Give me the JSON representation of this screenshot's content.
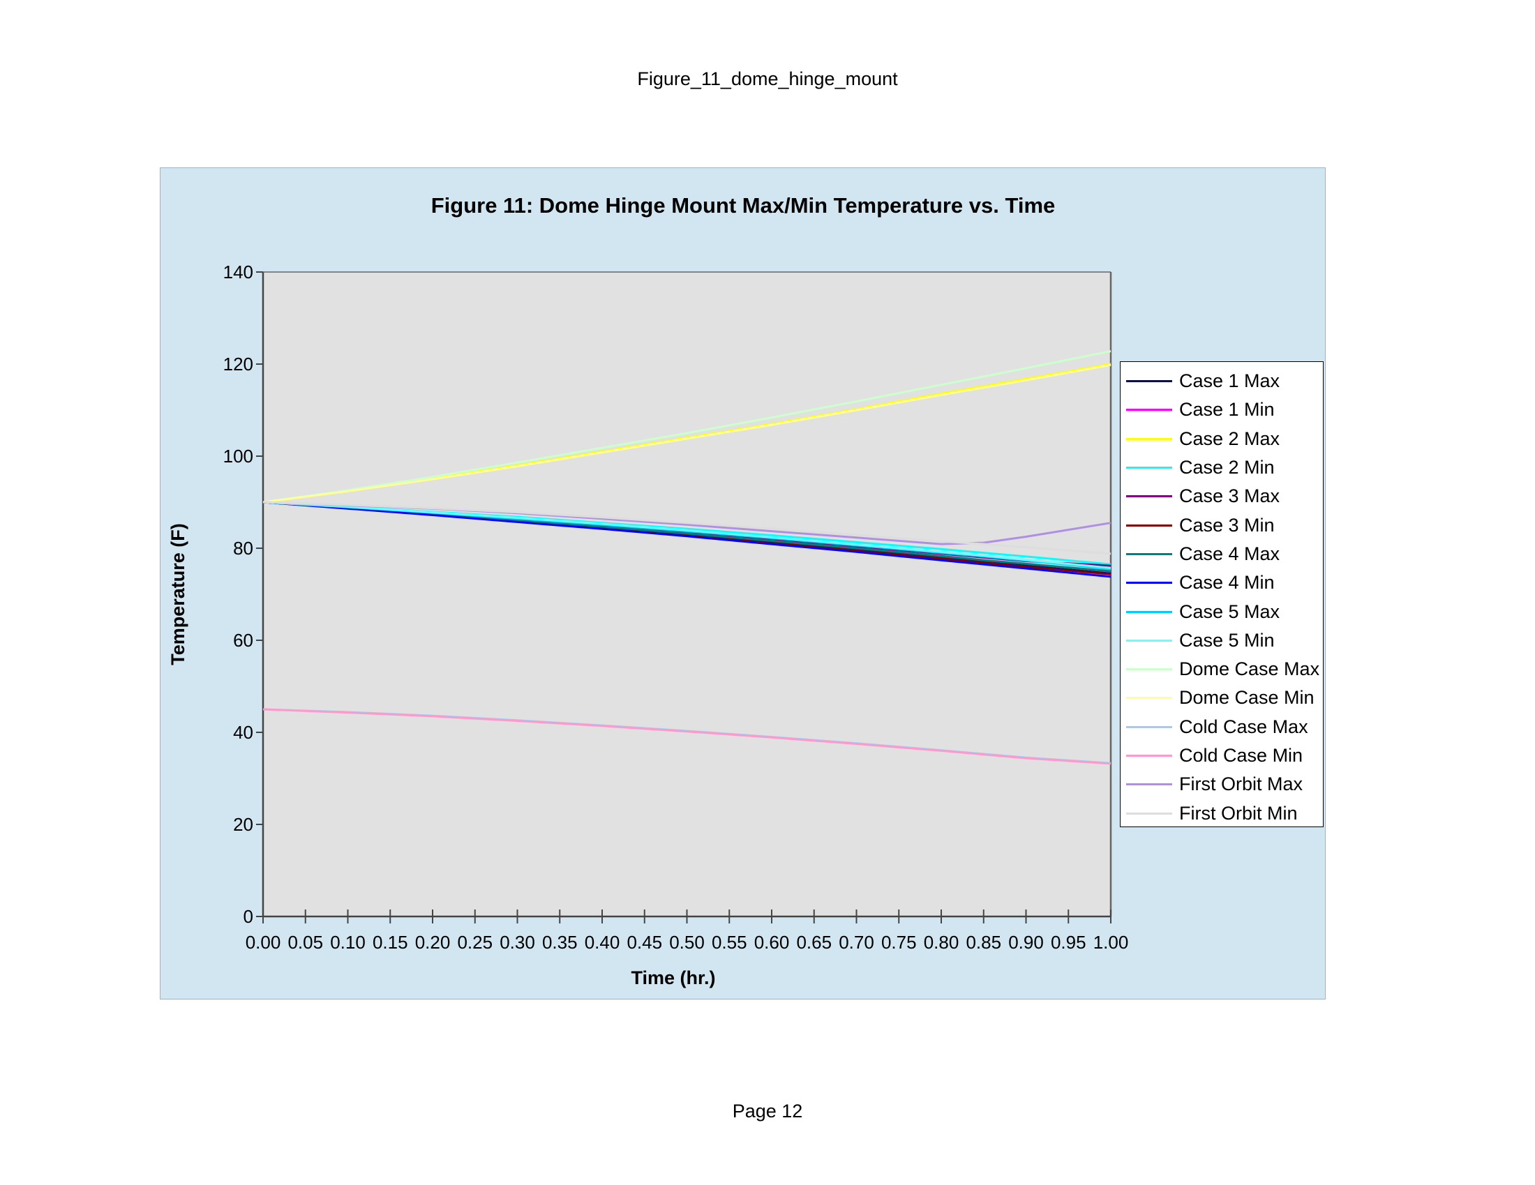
{
  "page": {
    "header": "Figure_11_dome_hinge_mount",
    "footer": "Page 12"
  },
  "chart_data": {
    "type": "line",
    "title": "Figure 11: Dome Hinge Mount Max/Min Temperature vs. Time",
    "xlabel": "Time (hr.)",
    "ylabel": "Temperature (F)",
    "xlim": [
      0,
      1
    ],
    "ylim": [
      0,
      140
    ],
    "x_ticks": [
      "0.00",
      "0.05",
      "0.10",
      "0.15",
      "0.20",
      "0.25",
      "0.30",
      "0.35",
      "0.40",
      "0.45",
      "0.50",
      "0.55",
      "0.60",
      "0.65",
      "0.70",
      "0.75",
      "0.80",
      "0.85",
      "0.90",
      "0.95",
      "1.00"
    ],
    "y_ticks": [
      "0",
      "20",
      "40",
      "60",
      "80",
      "100",
      "120",
      "140"
    ],
    "grid": false,
    "legend_position": "right",
    "plot_background": "#e1e1e1",
    "chart_background": "#d2e6f2",
    "x": [
      0,
      0.1,
      0.2,
      0.3,
      0.4,
      0.5,
      0.6,
      0.7,
      0.8,
      0.85,
      0.9,
      1.0
    ],
    "series": [
      {
        "name": "Case 1 Max",
        "color": "#000080",
        "values": [
          90,
          88.8,
          87.5,
          86.1,
          84.6,
          83.1,
          81.4,
          79.7,
          78,
          77.1,
          76.2,
          74.5
        ]
      },
      {
        "name": "Case 1 Min",
        "color": "#ff00ff",
        "values": [
          90,
          88.7,
          87.3,
          85.9,
          84.4,
          82.8,
          81.2,
          79.5,
          77.8,
          76.9,
          76,
          74.3
        ]
      },
      {
        "name": "Case 2 Max",
        "color": "#ffff00",
        "values": [
          90,
          92.4,
          95.1,
          98,
          101,
          104,
          107,
          110.2,
          113.6,
          115.2,
          116.8,
          120
        ]
      },
      {
        "name": "Case 2 Min",
        "color": "#00ffff",
        "values": [
          90,
          89,
          87.9,
          86.8,
          85.5,
          84.2,
          82.8,
          81.3,
          79.8,
          79,
          78.2,
          76.5
        ]
      },
      {
        "name": "Case 3 Max",
        "color": "#800080",
        "values": [
          90,
          88.9,
          87.7,
          86.4,
          85,
          83.6,
          82,
          80.4,
          78.8,
          78,
          77.2,
          76.2
        ]
      },
      {
        "name": "Case 3 Min",
        "color": "#800000",
        "values": [
          90,
          88.7,
          87.3,
          85.9,
          84.4,
          82.8,
          81.2,
          79.5,
          77.8,
          76.9,
          76,
          74.4
        ]
      },
      {
        "name": "Case 4 Max",
        "color": "#008080",
        "values": [
          90,
          88.8,
          87.5,
          86.1,
          84.7,
          83.2,
          81.6,
          80,
          78.3,
          77.4,
          76.6,
          75
        ]
      },
      {
        "name": "Case 4 Min",
        "color": "#0000ff",
        "values": [
          90,
          88.6,
          87.2,
          85.7,
          84.2,
          82.6,
          80.9,
          79.2,
          77.4,
          76.5,
          75.6,
          73.8
        ]
      },
      {
        "name": "Case 5 Max",
        "color": "#00ccff",
        "values": [
          90,
          88.9,
          87.7,
          86.4,
          85.1,
          83.7,
          82.2,
          80.6,
          79,
          78.2,
          77.3,
          75.5
        ]
      },
      {
        "name": "Case 5 Min",
        "color": "#66ffff",
        "values": [
          90,
          89,
          87.8,
          86.6,
          85.3,
          83.9,
          82.4,
          80.8,
          79.2,
          78.4,
          77.5,
          75.7
        ]
      },
      {
        "name": "Dome Case Max",
        "color": "#ccffcc",
        "values": [
          90,
          92.6,
          95.5,
          98.6,
          101.8,
          105,
          108.4,
          111.9,
          115.5,
          117.3,
          119.1,
          122.8
        ]
      },
      {
        "name": "Dome Case Min",
        "color": "#ffff99",
        "values": [
          90,
          92.4,
          95,
          97.8,
          100.8,
          103.8,
          106.8,
          110,
          113.3,
          114.9,
          116.5,
          119.8
        ]
      },
      {
        "name": "Cold Case Max",
        "color": "#99ccff",
        "values": [
          45,
          44.4,
          43.6,
          42.6,
          41.5,
          40.3,
          39,
          37.6,
          36.1,
          35.3,
          34.5,
          33.3
        ]
      },
      {
        "name": "Cold Case Min",
        "color": "#ff99cc",
        "values": [
          45,
          44.3,
          43.5,
          42.5,
          41.4,
          40.2,
          38.9,
          37.5,
          36,
          35.2,
          34.4,
          33.2
        ]
      },
      {
        "name": "First Orbit Max",
        "color": "#b08ee6",
        "values": [
          90,
          89.3,
          88.6,
          87.6,
          86.4,
          85.1,
          83.7,
          82.3,
          80.9,
          81.2,
          82.5,
          85.5
        ]
      },
      {
        "name": "First Orbit Min",
        "color": "#dddddd",
        "values": [
          90,
          89.4,
          88.7,
          87.8,
          86.7,
          85.5,
          84.2,
          82.9,
          81.5,
          80.9,
          80.2,
          78.8
        ]
      }
    ]
  }
}
